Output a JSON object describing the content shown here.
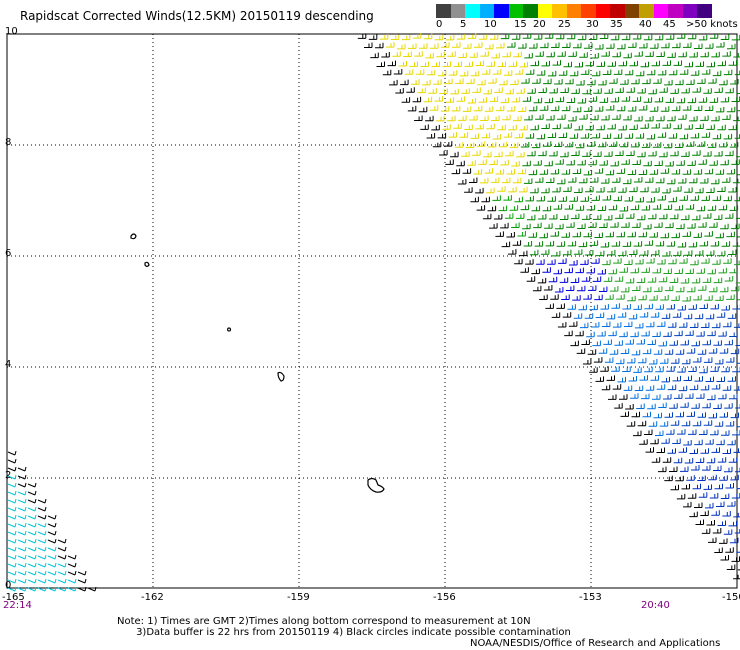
{
  "title": "Rapidscat Corrected Winds(12.5KM) 20150119 descending",
  "legend": {
    "labels": [
      "0",
      "5",
      "10",
      "15",
      "20",
      "25",
      "30",
      "35",
      "40",
      "45",
      ">50 knots"
    ],
    "colors": [
      "#404040",
      "#909090",
      "#00ffff",
      "#00b0ff",
      "#0000ff",
      "#00c000",
      "#008000",
      "#ffff00",
      "#ffc000",
      "#ff8000",
      "#ff4000",
      "#ff0000",
      "#c00000",
      "#804000",
      "#c0a000",
      "#ff00ff",
      "#c000c0",
      "#8000c0",
      "#400080"
    ]
  },
  "axes": {
    "y_ticks": [
      "10",
      "8",
      "6",
      "4",
      "2",
      "0"
    ],
    "x_ticks": [
      "-165",
      "-162",
      "-159",
      "-156",
      "-153",
      "-150"
    ]
  },
  "times": {
    "left": "22:14",
    "right": "20:40"
  },
  "notes": {
    "line1": "Note: 1) Times are GMT 2)Times along bottom correspond to measurement at 10N",
    "line2": "      3)Data buffer is 22 hrs from 20150119 4) Black circles indicate possible contamination",
    "credit": "NOAA/NESDIS/Office of Research and Applications"
  }
}
